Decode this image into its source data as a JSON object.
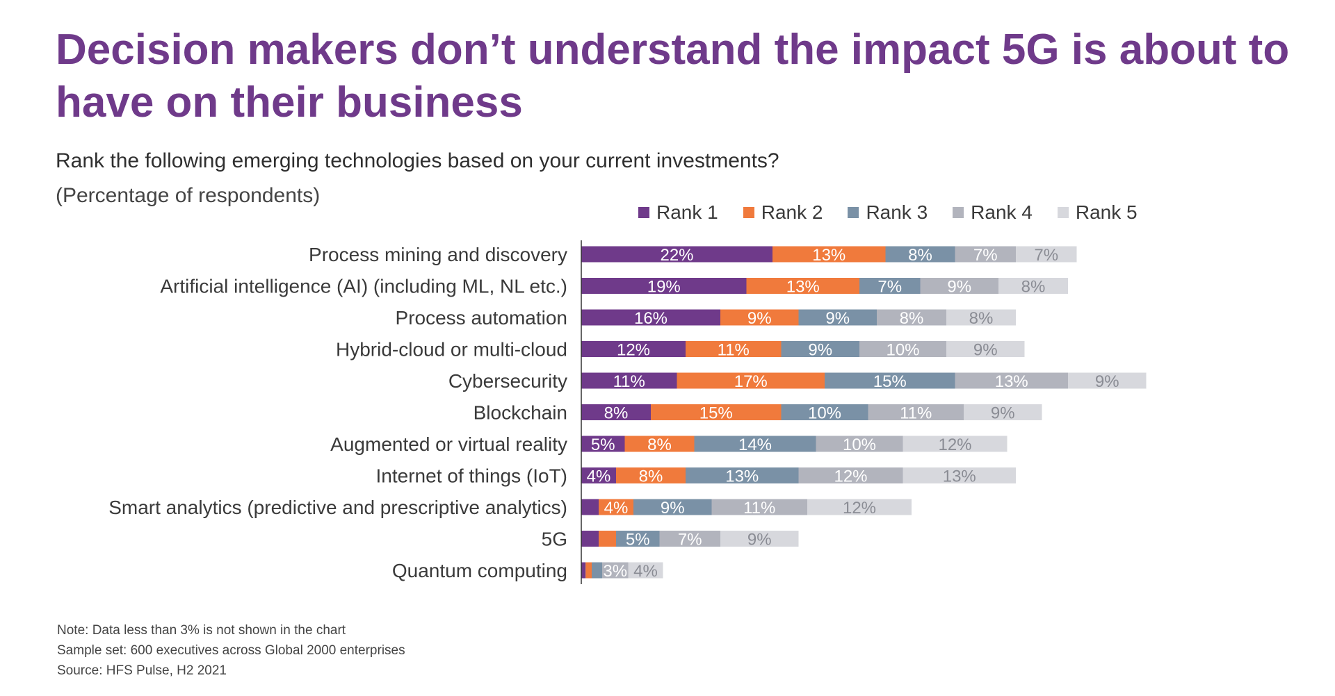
{
  "header": {
    "title": "Decision makers don’t understand the impact 5G is about to have on their business",
    "question": "Rank the following emerging technologies based on your current investments?",
    "unit_note": "(Percentage of respondents)"
  },
  "colors": {
    "Rank 1": "#6f3a8a",
    "Rank 2": "#f07a3c",
    "Rank 3": "#7a91a6",
    "Rank 4": "#b2b4bd",
    "Rank 5": "#d7d8dd"
  },
  "label_colors": {
    "Rank 1": "#ffffff",
    "Rank 2": "#ffffff",
    "Rank 3": "#ffffff",
    "Rank 4": "#ffffff",
    "Rank 5": "#8a8c94"
  },
  "chart_data": {
    "type": "bar",
    "orientation": "horizontal",
    "stacked": true,
    "legend_position": "top-right",
    "categories": [
      "Process mining and discovery",
      "Artificial intelligence (AI) (including ML, NL etc.)",
      "Process automation",
      "Hybrid-cloud or multi-cloud",
      "Cybersecurity",
      "Blockchain",
      "Augmented or virtual reality",
      "Internet of things (IoT)",
      "Smart analytics (predictive and prescriptive analytics)",
      "5G",
      "Quantum computing"
    ],
    "series": [
      {
        "name": "Rank 1",
        "values": [
          22,
          19,
          16,
          12,
          11,
          8,
          5,
          4,
          2,
          2,
          0.5
        ]
      },
      {
        "name": "Rank 2",
        "values": [
          13,
          13,
          9,
          11,
          17,
          15,
          8,
          8,
          4,
          2,
          0.7
        ]
      },
      {
        "name": "Rank 3",
        "values": [
          8,
          7,
          9,
          9,
          15,
          10,
          14,
          13,
          9,
          5,
          1.2
        ]
      },
      {
        "name": "Rank 4",
        "values": [
          7,
          9,
          8,
          10,
          13,
          11,
          10,
          12,
          11,
          7,
          3
        ]
      },
      {
        "name": "Rank 5",
        "values": [
          7,
          8,
          8,
          9,
          9,
          9,
          12,
          13,
          12,
          9,
          4
        ]
      }
    ],
    "min_label_value": 3
  },
  "notes": [
    "Note: Data less than 3% is not shown in the chart",
    "Sample set: 600 executives across Global 2000 enterprises",
    "Source: HFS Pulse, H2 2021"
  ]
}
